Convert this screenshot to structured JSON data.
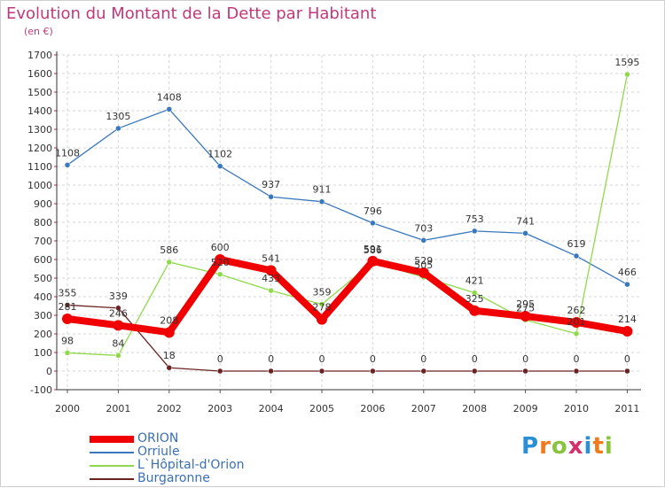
{
  "chart_data": {
    "type": "line",
    "title": "Evolution du Montant de la Dette par Habitant",
    "subtitle": "(en €)",
    "categories": [
      "2000",
      "2001",
      "2002",
      "2003",
      "2004",
      "2005",
      "2006",
      "2007",
      "2008",
      "2009",
      "2010",
      "2011"
    ],
    "ylim": [
      -100,
      1700
    ],
    "yticks": [
      -100,
      0,
      100,
      200,
      300,
      400,
      500,
      600,
      700,
      800,
      900,
      1000,
      1100,
      1200,
      1300,
      1400,
      1500,
      1600,
      1700
    ],
    "grid": true,
    "legend_position": "bottom-left",
    "series": [
      {
        "name": "Orriule",
        "color": "#3a78bd",
        "values": [
          1108,
          1305,
          1408,
          1102,
          937,
          911,
          796,
          703,
          753,
          741,
          619,
          466
        ]
      },
      {
        "name": "L`Hôpital-d'Orion",
        "color": "#8fd94a",
        "values": [
          98,
          84,
          586,
          520,
          433,
          359,
          586,
          505,
          421,
          275,
          201,
          1595
        ]
      },
      {
        "name": "Burgaronne",
        "color": "#6b2222",
        "values": [
          355,
          339,
          18,
          0,
          0,
          0,
          0,
          0,
          0,
          0,
          0,
          0
        ]
      },
      {
        "name": "ORION",
        "color": "#f00000",
        "values": [
          281,
          246,
          208,
          600,
          541,
          278,
          591,
          529,
          325,
          295,
          262,
          214
        ]
      }
    ],
    "legend_order": [
      "ORION",
      "Orriule",
      "L`Hôpital-d'Orion",
      "Burgaronne"
    ]
  },
  "logo": {
    "letters": [
      "P",
      "r",
      "o",
      "x",
      "i",
      "t",
      "i"
    ],
    "colors": [
      "#2a8fd4",
      "#f07a1e",
      "#8ac43f",
      "#d4306a",
      "#2a8fd4",
      "#f07a1e",
      "#8ac43f"
    ]
  }
}
